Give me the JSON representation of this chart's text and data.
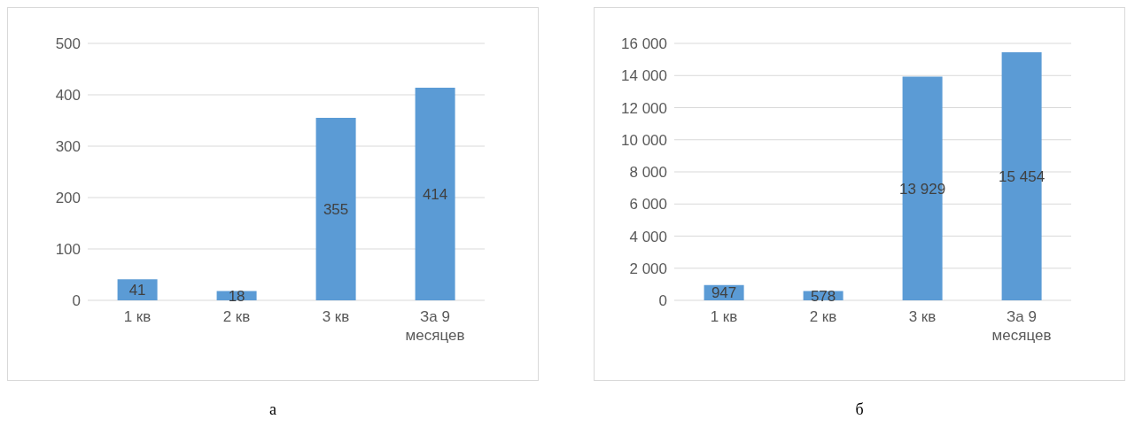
{
  "chart_data": [
    {
      "type": "bar",
      "categories": [
        "1 кв",
        "2 кв",
        "3 кв",
        "За 9 месяцев"
      ],
      "values": [
        41,
        18,
        355,
        414
      ],
      "color": "#5b9bd5",
      "ylim": [
        0,
        500
      ],
      "yticks": [
        0,
        100,
        200,
        300,
        400,
        500
      ],
      "grid": "y",
      "data_labels": true,
      "annotations": [
        "а"
      ]
    },
    {
      "type": "bar",
      "categories": [
        "1 кв",
        "2 кв",
        "3 кв",
        "За 9 месяцев"
      ],
      "values": [
        947,
        578,
        13929,
        15454
      ],
      "value_labels": [
        "947",
        "578",
        "13 929",
        "15 454"
      ],
      "color": "#5b9bd5",
      "ylim": [
        0,
        16000
      ],
      "yticks": [
        {
          "value": 0,
          "label": "0"
        },
        {
          "value": 2000,
          "label": "2 000"
        },
        {
          "value": 4000,
          "label": "4 000"
        },
        {
          "value": 6000,
          "label": "6 000"
        },
        {
          "value": 8000,
          "label": "8 000"
        },
        {
          "value": 10000,
          "label": "10 000"
        },
        {
          "value": 12000,
          "label": "12 000"
        },
        {
          "value": 14000,
          "label": "14 000"
        },
        {
          "value": 16000,
          "label": "16 000"
        }
      ],
      "grid": "y",
      "annotations": [
        "б"
      ]
    }
  ]
}
